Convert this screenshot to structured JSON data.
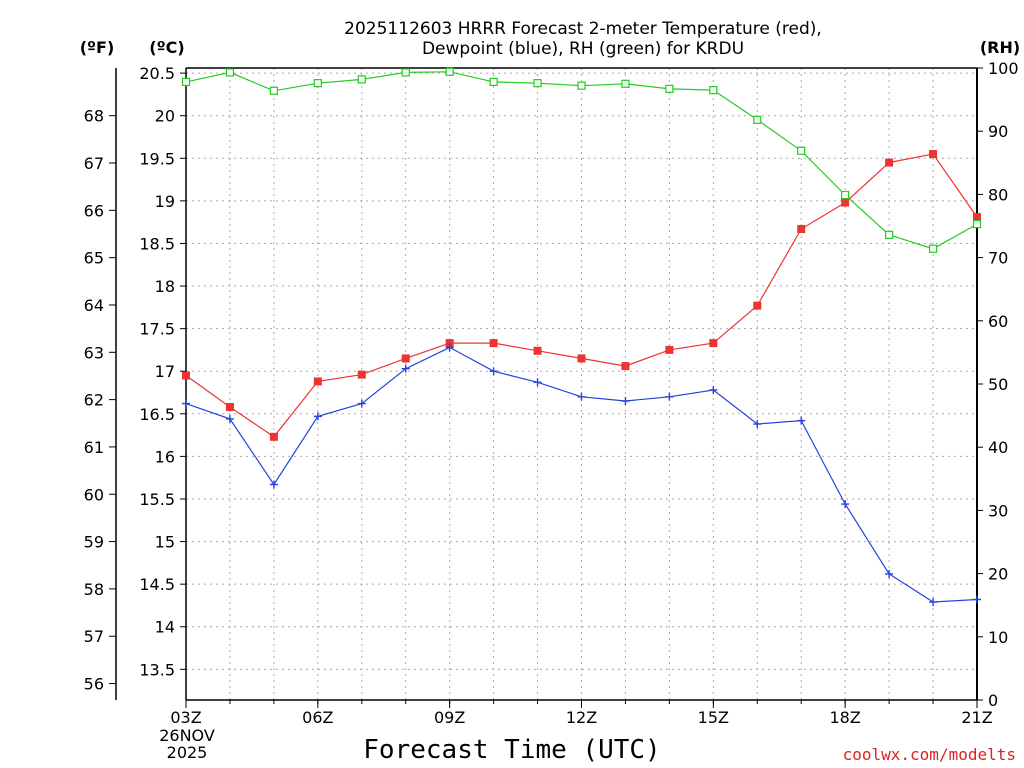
{
  "chart_data": {
    "type": "line",
    "title_line1": "2025112603 HRRR Forecast 2-meter Temperature (red),",
    "title_line2": "Dewpoint (blue), RH (green) for KRDU",
    "xlabel": "Forecast Time (UTC)",
    "credit": "coolwx.com/modelts",
    "date_line1": "26NOV",
    "date_line2": "2025",
    "units": {
      "fahrenheit": "(ºF)",
      "celsius": "(ºC)",
      "rh": "(RH)"
    },
    "x_hours": [
      3,
      4,
      5,
      6,
      7,
      8,
      9,
      10,
      11,
      12,
      13,
      14,
      15,
      16,
      17,
      18,
      19,
      20,
      21
    ],
    "x_ticks": [
      {
        "hour": 3,
        "label": "03Z"
      },
      {
        "hour": 6,
        "label": "06Z"
      },
      {
        "hour": 9,
        "label": "09Z"
      },
      {
        "hour": 12,
        "label": "12Z"
      },
      {
        "hour": 15,
        "label": "15Z"
      },
      {
        "hour": 18,
        "label": "18Z"
      },
      {
        "hour": 21,
        "label": "21Z"
      }
    ],
    "c_range": [
      13.14,
      20.56
    ],
    "c_ticks": [
      "13.5",
      "14",
      "14.5",
      "15",
      "15.5",
      "16",
      "16.5",
      "17",
      "17.5",
      "18",
      "18.5",
      "19",
      "19.5",
      "20",
      "20.5"
    ],
    "f_ticks": [
      "56",
      "57",
      "58",
      "59",
      "60",
      "61",
      "62",
      "63",
      "64",
      "65",
      "66",
      "67",
      "68"
    ],
    "rh_range": [
      0,
      100
    ],
    "rh_ticks": [
      "0",
      "10",
      "20",
      "30",
      "40",
      "50",
      "60",
      "70",
      "80",
      "90",
      "100"
    ],
    "series": [
      {
        "name": "Temperature",
        "unit": "C",
        "color": "#ee3333",
        "marker": "filled-square",
        "values": [
          16.95,
          16.58,
          16.23,
          16.88,
          16.96,
          17.15,
          17.33,
          17.33,
          17.24,
          17.15,
          17.06,
          17.25,
          17.33,
          17.77,
          18.67,
          18.98,
          19.45,
          19.55,
          18.81
        ]
      },
      {
        "name": "Dewpoint",
        "unit": "C",
        "color": "#2244dd",
        "marker": "plus",
        "values": [
          16.62,
          16.44,
          15.67,
          16.47,
          16.62,
          17.03,
          17.28,
          17.0,
          16.87,
          16.7,
          16.65,
          16.7,
          16.78,
          16.38,
          16.42,
          15.44,
          14.62,
          14.29,
          14.32
        ]
      },
      {
        "name": "Relative Humidity",
        "unit": "%",
        "color": "#22cc22",
        "marker": "open-square",
        "values": [
          97.8,
          99.3,
          96.4,
          97.6,
          98.2,
          99.3,
          99.4,
          97.8,
          97.6,
          97.2,
          97.5,
          96.7,
          96.5,
          91.8,
          86.9,
          79.9,
          73.6,
          71.4,
          75.3
        ]
      }
    ]
  }
}
